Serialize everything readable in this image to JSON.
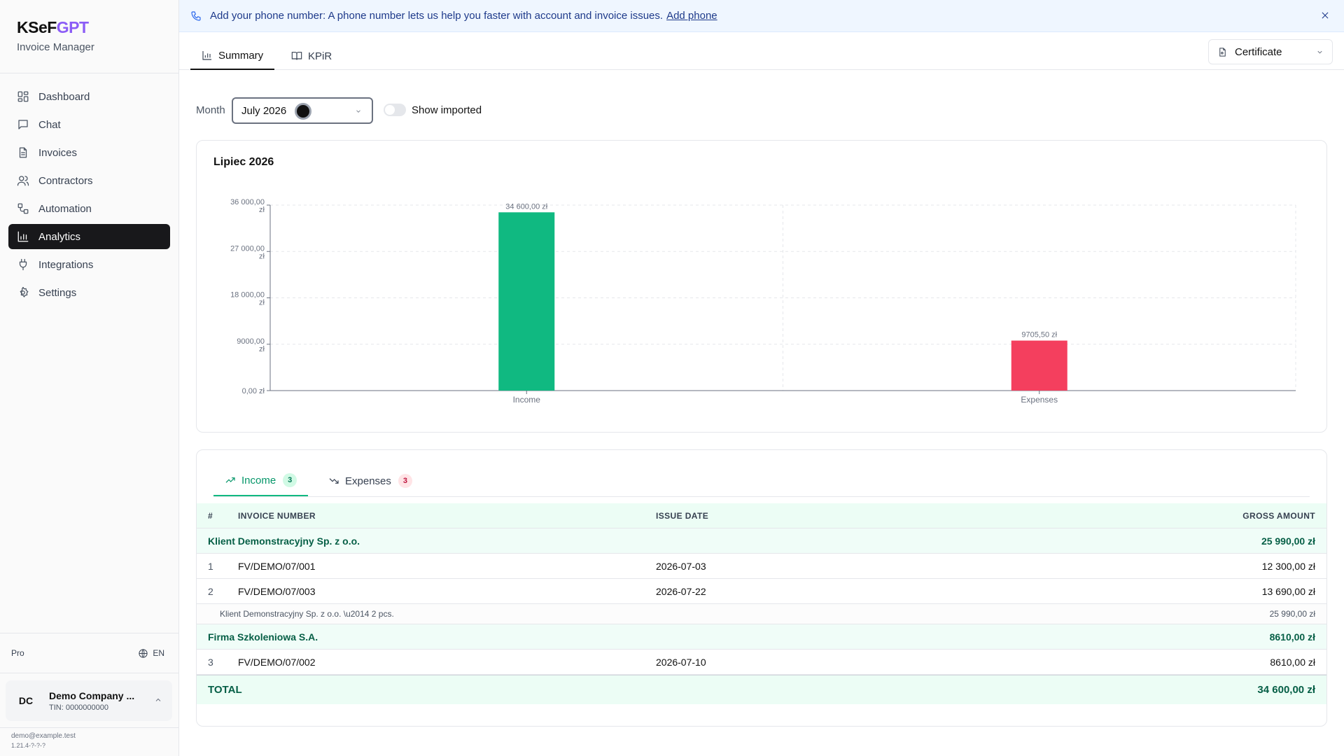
{
  "app": {
    "logo_main": "KSeF",
    "logo_accent": "GPT",
    "subtitle": "Invoice Manager"
  },
  "sidebar": {
    "items": [
      {
        "label": "Dashboard",
        "icon": "dashboard-icon"
      },
      {
        "label": "Chat",
        "icon": "chat-icon"
      },
      {
        "label": "Invoices",
        "icon": "invoice-icon"
      },
      {
        "label": "Contractors",
        "icon": "users-icon"
      },
      {
        "label": "Automation",
        "icon": "workflow-icon"
      },
      {
        "label": "Analytics",
        "icon": "chart-icon",
        "active": true
      },
      {
        "label": "Integrations",
        "icon": "plug-icon"
      },
      {
        "label": "Settings",
        "icon": "gear-icon"
      }
    ],
    "plan": "Pro",
    "language": "EN",
    "company": {
      "initials": "DC",
      "name": "Demo Company ...",
      "tin": "TIN: 0000000000"
    },
    "email": "demo@example.test",
    "version": "1.21.4-?-?-?"
  },
  "banner": {
    "text": "Add your phone number: A phone number lets us help you faster with account and invoice issues.",
    "link": "Add phone"
  },
  "tabs": {
    "summary": "Summary",
    "kpir": "KPiR"
  },
  "certificate": {
    "label": "Certificate"
  },
  "filters": {
    "month_label": "Month",
    "month_value": "July 2026",
    "show_imported_label": "Show imported",
    "show_imported": false
  },
  "chart_data": {
    "type": "bar",
    "title": "Lipiec 2026",
    "categories": [
      "Income",
      "Expenses"
    ],
    "values": [
      34600.0,
      9705.5
    ],
    "value_labels": [
      "34 600,00 zł",
      "9705,50 zł"
    ],
    "colors": [
      "#10b981",
      "#f43f5e"
    ],
    "ylim": [
      0,
      36000
    ],
    "yticks": [
      {
        "value": 0,
        "label": "0,00 zł"
      },
      {
        "value": 9000,
        "label": "9000,00 zł"
      },
      {
        "value": 18000,
        "label": "18 000,00 zł"
      },
      {
        "value": 27000,
        "label": "27 000,00 zł"
      },
      {
        "value": 36000,
        "label": "36 000,00 zł"
      }
    ],
    "grid": true
  },
  "table_tabs": {
    "income": {
      "label": "Income",
      "count": "3"
    },
    "expenses": {
      "label": "Expenses",
      "count": "3"
    }
  },
  "table": {
    "headers": {
      "num": "#",
      "invoice": "INVOICE NUMBER",
      "date": "ISSUE DATE",
      "amount": "GROSS AMOUNT"
    },
    "groups": [
      {
        "name": "Klient Demonstracyjny Sp. z o.o.",
        "total": "25 990,00 zł",
        "rows": [
          {
            "num": "1",
            "invoice": "FV/DEMO/07/001",
            "date": "2026-07-03",
            "amount": "12 300,00 zł"
          },
          {
            "num": "2",
            "invoice": "FV/DEMO/07/003",
            "date": "2026-07-22",
            "amount": "13 690,00 zł"
          }
        ],
        "subtotal_label": "Klient Demonstracyjny Sp. z o.o. \\u2014 2 pcs.",
        "subtotal_amount": "25 990,00 zł"
      },
      {
        "name": "Firma Szkoleniowa S.A.",
        "total": "8610,00 zł",
        "rows": [
          {
            "num": "3",
            "invoice": "FV/DEMO/07/002",
            "date": "2026-07-10",
            "amount": "8610,00 zł"
          }
        ]
      }
    ],
    "total_label": "TOTAL",
    "total_amount": "34 600,00 zł"
  }
}
